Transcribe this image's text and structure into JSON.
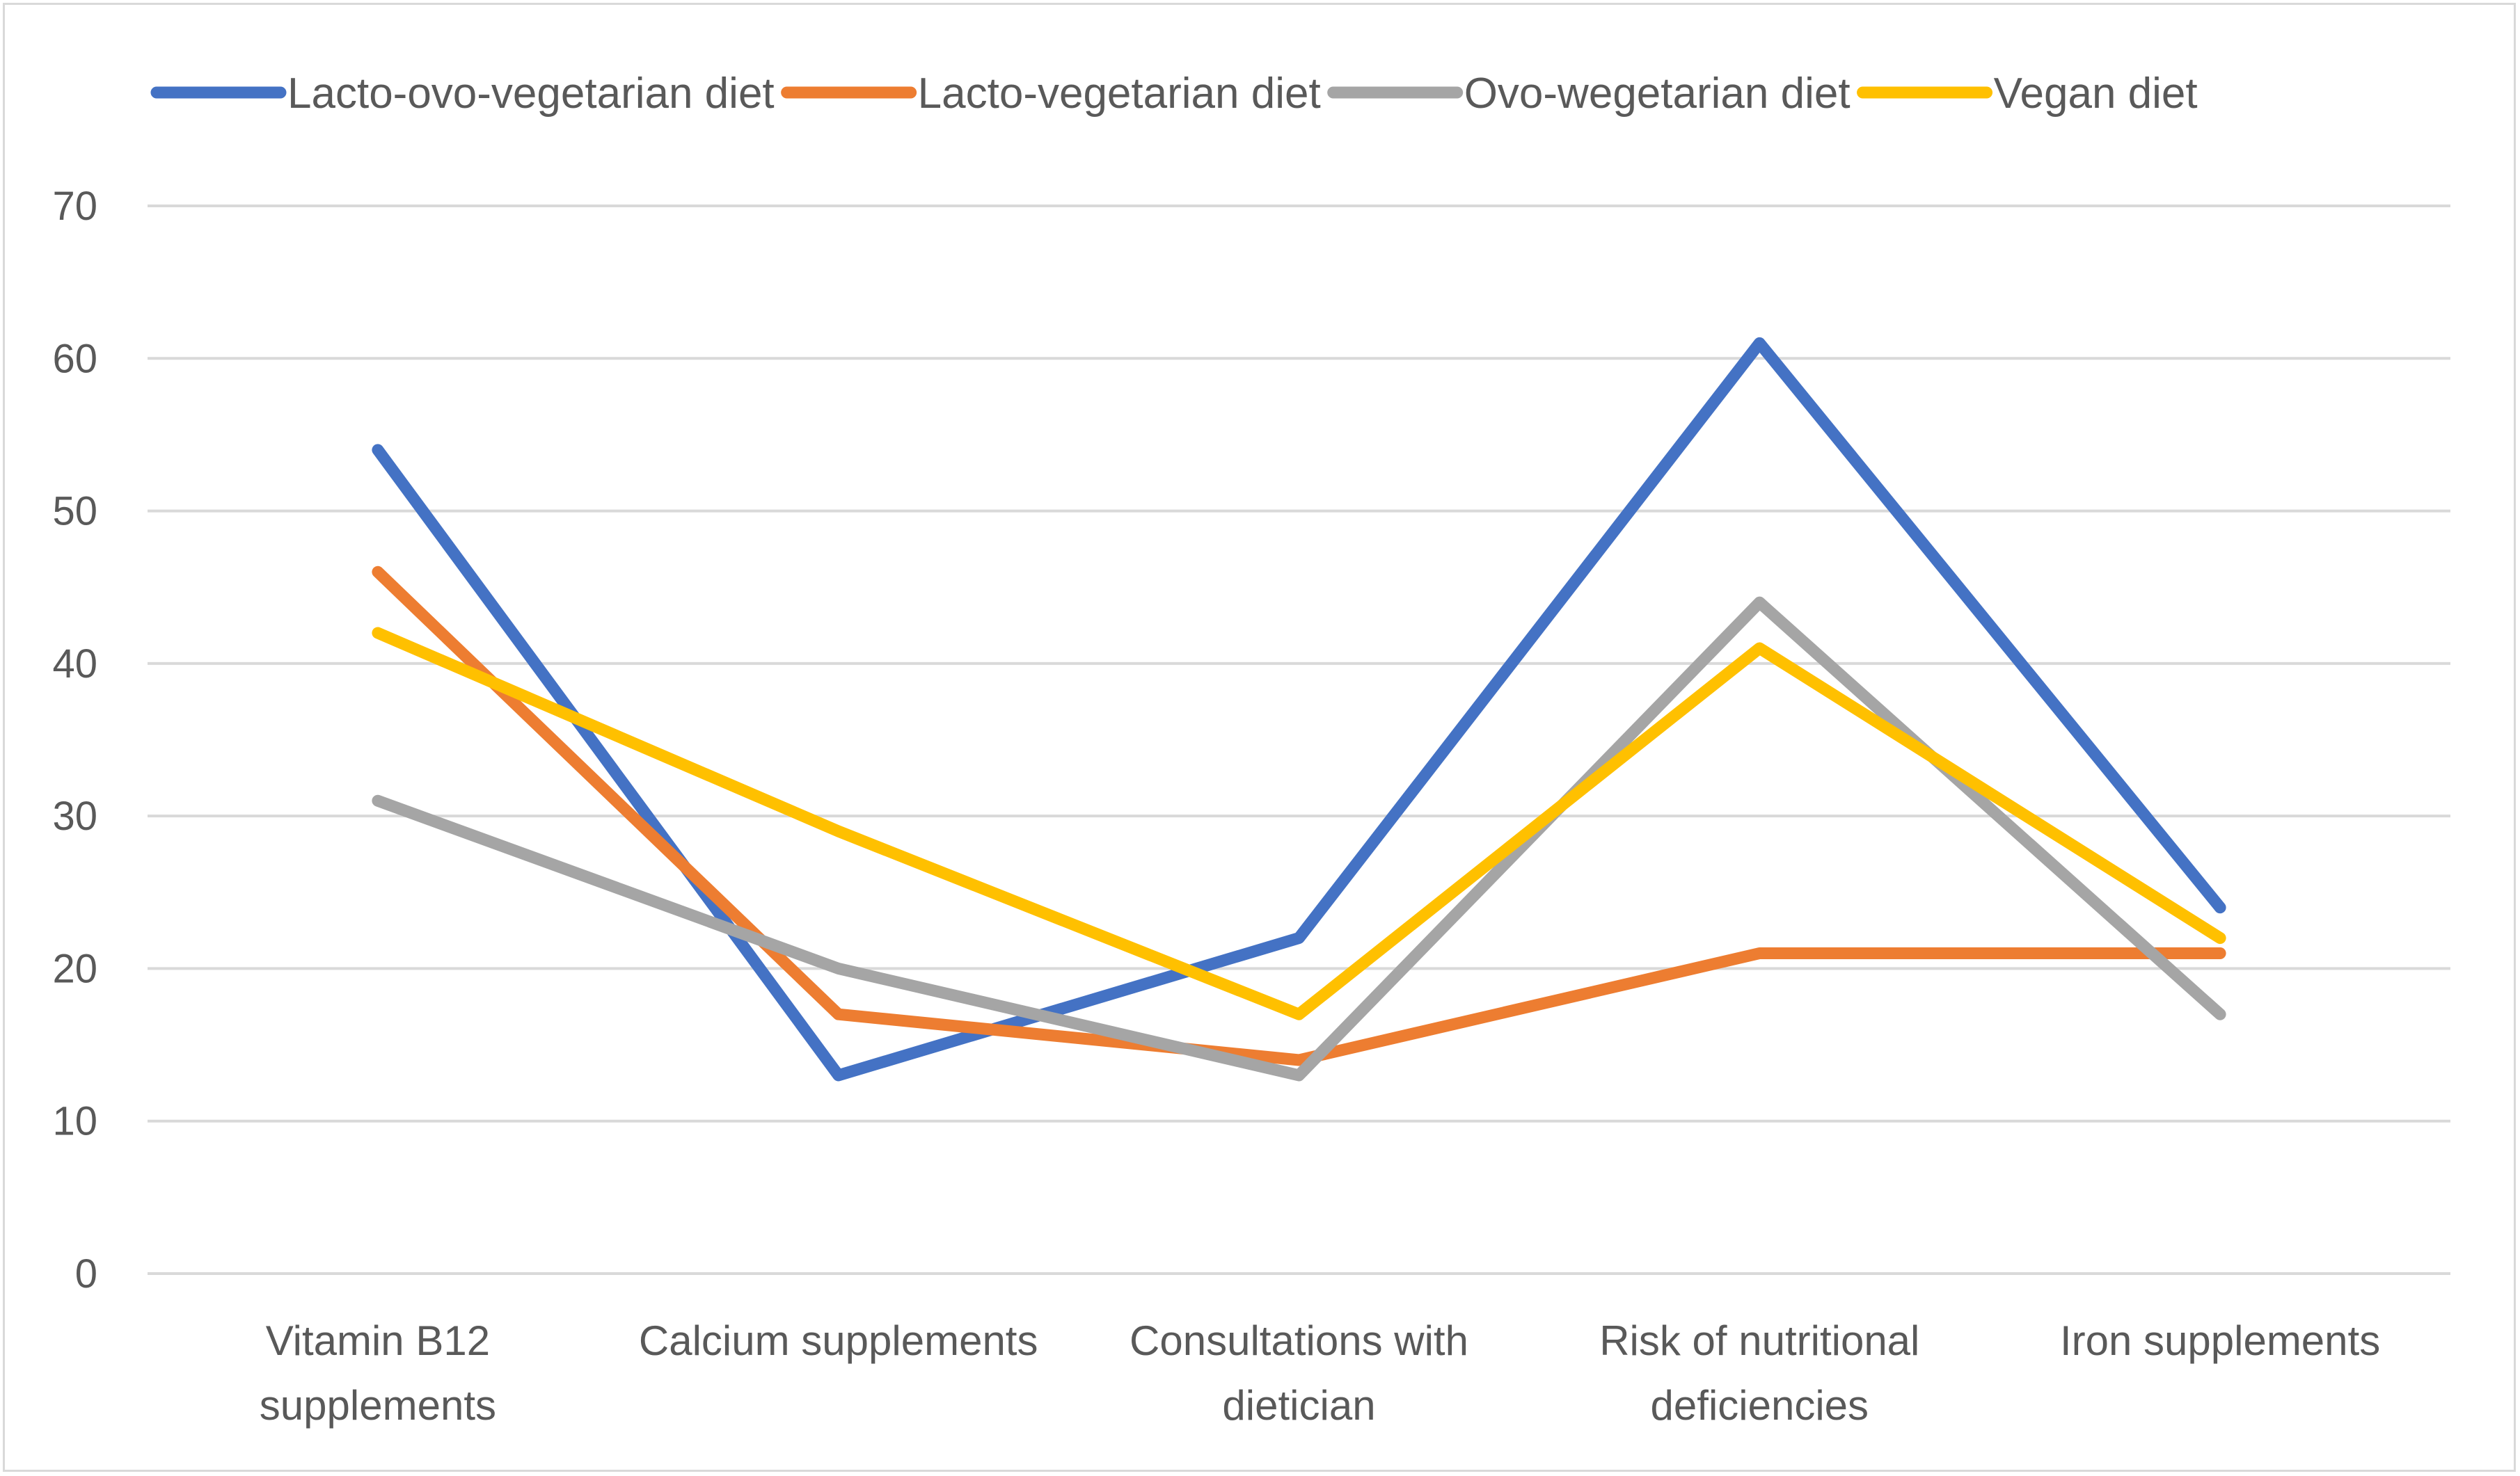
{
  "chart_data": {
    "type": "line",
    "title": "",
    "xlabel": "",
    "ylabel": "",
    "ylim": [
      0,
      70
    ],
    "yticks": [
      0,
      10,
      20,
      30,
      40,
      50,
      60,
      70
    ],
    "grid": true,
    "legend_position": "top",
    "categories": [
      [
        "Vitamin B12",
        "supplements"
      ],
      [
        "Calcium supplements"
      ],
      [
        "Consultations with",
        "dietician"
      ],
      [
        "Risk of nutritional",
        "deficiencies"
      ],
      [
        "Iron supplements"
      ]
    ],
    "series": [
      {
        "name": "Lacto-ovo-vegetarian diet",
        "color": "#4472C4",
        "values": [
          54,
          13,
          22,
          61,
          24
        ]
      },
      {
        "name": "Lacto-vegetarian diet",
        "color": "#ED7D31",
        "values": [
          46,
          17,
          14,
          21,
          21
        ]
      },
      {
        "name": "Ovo-wegetarian diet",
        "color": "#A5A5A5",
        "values": [
          31,
          20,
          13,
          44,
          17
        ]
      },
      {
        "name": "Vegan diet",
        "color": "#FFC000",
        "values": [
          42,
          29,
          17,
          41,
          22
        ]
      }
    ]
  }
}
